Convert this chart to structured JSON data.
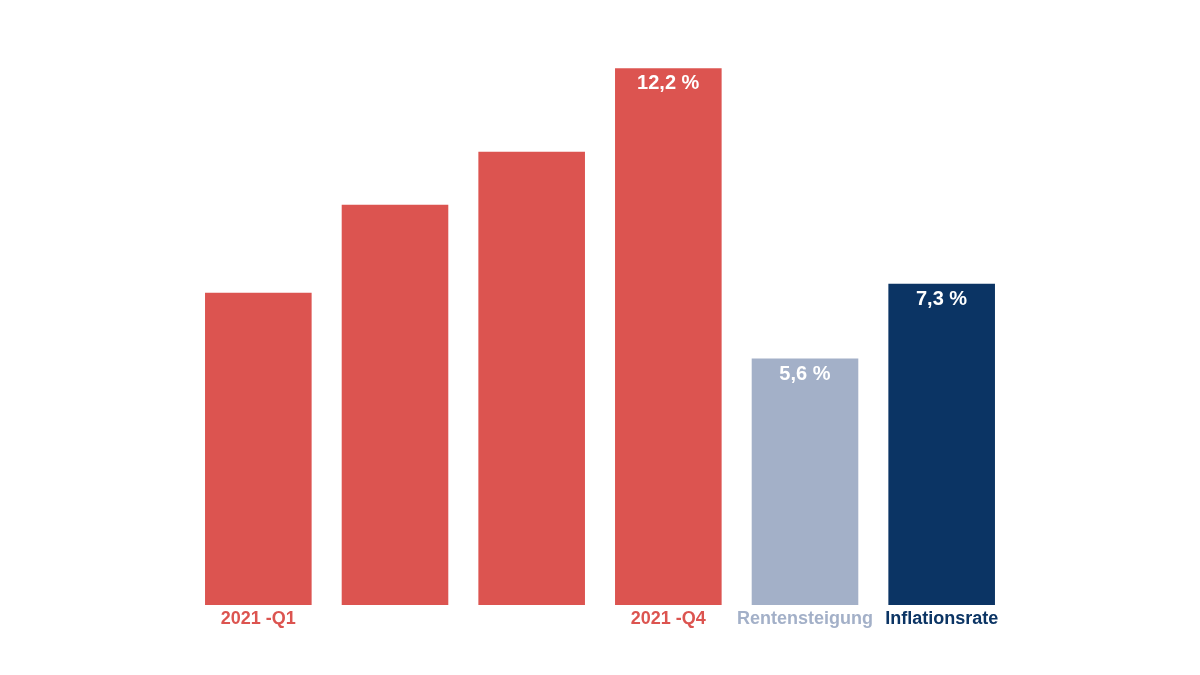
{
  "chart_data": {
    "type": "bar",
    "categories": [
      "2021 -Q1",
      null,
      null,
      "2021 -Q4",
      "Rentensteigung",
      "Inflationsrate"
    ],
    "values": [
      7.1,
      9.1,
      10.3,
      12.2,
      5.6,
      7.3
    ],
    "colors": [
      "#dc5450",
      "#dc5450",
      "#dc5450",
      "#dc5450",
      "#a3b0c8",
      "#0b3464"
    ],
    "value_labels": [
      null,
      null,
      null,
      "12,2 %",
      "5,6 %",
      "7,3 %"
    ]
  }
}
